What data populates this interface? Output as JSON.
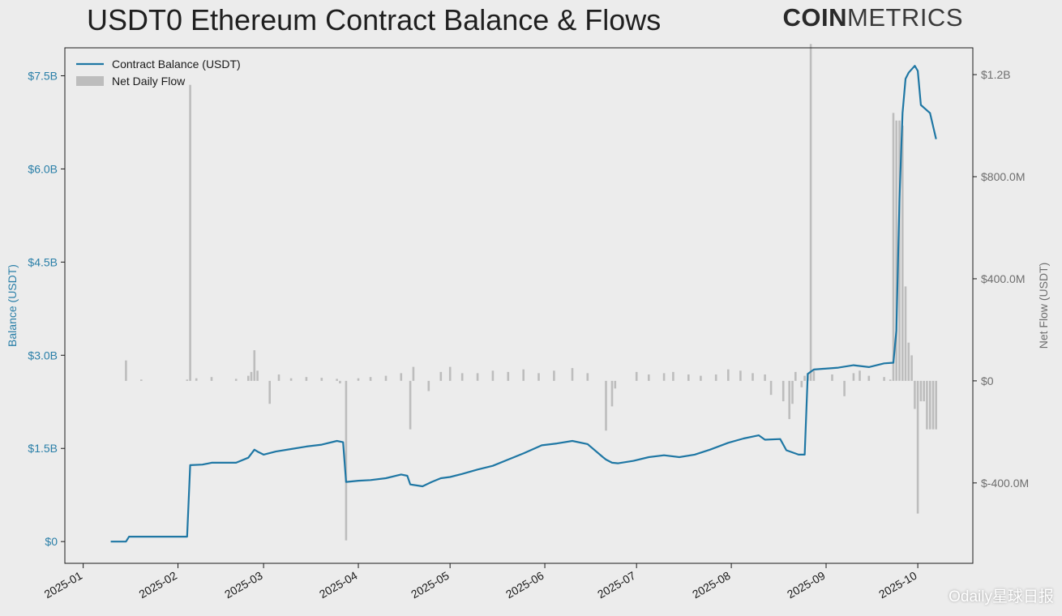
{
  "header": {
    "title": "USDT0 Ethereum Contract Balance & Flows",
    "logo_bold": "COIN",
    "logo_light": "METRICS"
  },
  "watermark": "Odaily星球日报",
  "colors": {
    "balance_line": "#1f77a4",
    "flow_bars": "#bdbdbd",
    "left_axis_text": "#2a7fa8",
    "right_axis_text": "#6e6e6e",
    "background": "#ececec"
  },
  "chart_data": {
    "type": "bar+line",
    "title": "USDT0 Ethereum Contract Balance & Flows",
    "x_tick_labels": [
      "2025-01",
      "2025-02",
      "2025-03",
      "2025-04",
      "2025-05",
      "2025-06",
      "2025-07",
      "2025-08",
      "2025-09",
      "2025-10"
    ],
    "x_tick_dates": [
      "2025-01-01",
      "2025-02-01",
      "2025-03-01",
      "2025-04-01",
      "2025-05-01",
      "2025-06-01",
      "2025-07-01",
      "2025-08-01",
      "2025-09-01",
      "2025-10-01"
    ],
    "xlim": [
      "2024-12-26",
      "2025-10-19"
    ],
    "left_axis": {
      "label": "Balance (USDT)",
      "ylim": [
        -0.35,
        7.95
      ],
      "unit": "B USDT",
      "ticks": [
        0,
        1.5,
        3.0,
        4.5,
        6.0,
        7.5
      ],
      "tick_labels": [
        "$0",
        "$1.5B",
        "$3.0B",
        "$4.5B",
        "$6.0B",
        "$7.5B"
      ]
    },
    "right_axis": {
      "label": "Net Flow (USDT)",
      "ylim": [
        -715,
        1305
      ],
      "unit": "M USDT",
      "ticks": [
        -400,
        0,
        400,
        800,
        1200
      ],
      "tick_labels": [
        "$-400.0M",
        "$0",
        "$400.0M",
        "$800.0M",
        "$1.2B"
      ]
    },
    "legend": {
      "placement": "top-left",
      "entries": [
        "Contract Balance (USDT)",
        "Net Daily Flow"
      ]
    },
    "grid": false,
    "series": [
      {
        "name": "Contract Balance (USDT)",
        "kind": "line",
        "axis": "left",
        "x": [
          "2025-01-10",
          "2025-01-15",
          "2025-01-16",
          "2025-01-20",
          "2025-01-25",
          "2025-01-31",
          "2025-02-04",
          "2025-02-05",
          "2025-02-09",
          "2025-02-12",
          "2025-02-20",
          "2025-02-24",
          "2025-02-26",
          "2025-02-27",
          "2025-03-01",
          "2025-03-05",
          "2025-03-10",
          "2025-03-15",
          "2025-03-20",
          "2025-03-25",
          "2025-03-27",
          "2025-03-28",
          "2025-03-30",
          "2025-04-01",
          "2025-04-05",
          "2025-04-10",
          "2025-04-15",
          "2025-04-17",
          "2025-04-18",
          "2025-04-22",
          "2025-04-25",
          "2025-04-28",
          "2025-05-01",
          "2025-05-05",
          "2025-05-10",
          "2025-05-15",
          "2025-05-20",
          "2025-05-25",
          "2025-05-31",
          "2025-06-05",
          "2025-06-10",
          "2025-06-15",
          "2025-06-20",
          "2025-06-21",
          "2025-06-23",
          "2025-06-25",
          "2025-06-30",
          "2025-07-05",
          "2025-07-10",
          "2025-07-15",
          "2025-07-20",
          "2025-07-25",
          "2025-07-31",
          "2025-08-05",
          "2025-08-10",
          "2025-08-12",
          "2025-08-17",
          "2025-08-19",
          "2025-08-23",
          "2025-08-25",
          "2025-08-26",
          "2025-08-28",
          "2025-09-05",
          "2025-09-10",
          "2025-09-15",
          "2025-09-20",
          "2025-09-23",
          "2025-09-24",
          "2025-09-25",
          "2025-09-26",
          "2025-09-27",
          "2025-09-28",
          "2025-09-30",
          "2025-10-01",
          "2025-10-02",
          "2025-10-05",
          "2025-10-07"
        ],
        "values": [
          0.0,
          0.0,
          0.08,
          0.08,
          0.08,
          0.08,
          0.08,
          1.23,
          1.24,
          1.27,
          1.27,
          1.35,
          1.48,
          1.45,
          1.4,
          1.45,
          1.49,
          1.53,
          1.56,
          1.62,
          1.6,
          0.96,
          0.97,
          0.98,
          0.99,
          1.02,
          1.08,
          1.06,
          0.92,
          0.89,
          0.96,
          1.02,
          1.04,
          1.09,
          1.16,
          1.22,
          1.32,
          1.42,
          1.55,
          1.58,
          1.62,
          1.57,
          1.36,
          1.32,
          1.27,
          1.26,
          1.3,
          1.36,
          1.39,
          1.36,
          1.4,
          1.48,
          1.59,
          1.66,
          1.71,
          1.64,
          1.65,
          1.47,
          1.4,
          1.4,
          2.7,
          2.77,
          2.8,
          2.84,
          2.81,
          2.87,
          2.88,
          3.4,
          5.5,
          6.9,
          7.45,
          7.55,
          7.66,
          7.58,
          7.03,
          6.9,
          6.48
        ]
      },
      {
        "name": "Net Daily Flow",
        "kind": "bar",
        "axis": "right",
        "x": [
          "2025-01-15",
          "2025-01-20",
          "2025-02-04",
          "2025-02-05",
          "2025-02-07",
          "2025-02-12",
          "2025-02-20",
          "2025-02-24",
          "2025-02-25",
          "2025-02-26",
          "2025-02-27",
          "2025-03-03",
          "2025-03-06",
          "2025-03-10",
          "2025-03-15",
          "2025-03-20",
          "2025-03-25",
          "2025-03-26",
          "2025-03-28",
          "2025-04-01",
          "2025-04-05",
          "2025-04-10",
          "2025-04-15",
          "2025-04-18",
          "2025-04-19",
          "2025-04-24",
          "2025-04-28",
          "2025-05-01",
          "2025-05-05",
          "2025-05-10",
          "2025-05-15",
          "2025-05-20",
          "2025-05-25",
          "2025-05-30",
          "2025-06-04",
          "2025-06-10",
          "2025-06-15",
          "2025-06-21",
          "2025-06-23",
          "2025-06-24",
          "2025-07-01",
          "2025-07-05",
          "2025-07-10",
          "2025-07-13",
          "2025-07-18",
          "2025-07-22",
          "2025-07-27",
          "2025-07-31",
          "2025-08-04",
          "2025-08-08",
          "2025-08-12",
          "2025-08-14",
          "2025-08-18",
          "2025-08-20",
          "2025-08-21",
          "2025-08-22",
          "2025-08-24",
          "2025-08-25",
          "2025-08-26",
          "2025-08-27",
          "2025-08-28",
          "2025-09-03",
          "2025-09-07",
          "2025-09-10",
          "2025-09-12",
          "2025-09-15",
          "2025-09-20",
          "2025-09-22",
          "2025-09-23",
          "2025-09-24",
          "2025-09-25",
          "2025-09-26",
          "2025-09-27",
          "2025-09-28",
          "2025-09-29",
          "2025-09-30",
          "2025-10-01",
          "2025-10-02",
          "2025-10-03",
          "2025-10-04",
          "2025-10-05",
          "2025-10-06",
          "2025-10-07"
        ],
        "values": [
          80,
          5,
          5,
          1160,
          10,
          15,
          8,
          20,
          35,
          120,
          40,
          -90,
          25,
          10,
          15,
          12,
          8,
          -10,
          -625,
          10,
          15,
          20,
          30,
          -190,
          55,
          -40,
          35,
          55,
          30,
          30,
          40,
          35,
          45,
          30,
          40,
          50,
          30,
          -195,
          -100,
          -30,
          35,
          25,
          30,
          35,
          25,
          20,
          25,
          45,
          40,
          30,
          25,
          -55,
          -80,
          -150,
          -90,
          35,
          -25,
          20,
          30,
          1320,
          40,
          25,
          -60,
          30,
          40,
          20,
          15,
          5,
          1050,
          1020,
          1020,
          1000,
          370,
          150,
          100,
          -110,
          -520,
          -80,
          -80,
          -190,
          -190,
          -190,
          -190
        ]
      }
    ]
  }
}
